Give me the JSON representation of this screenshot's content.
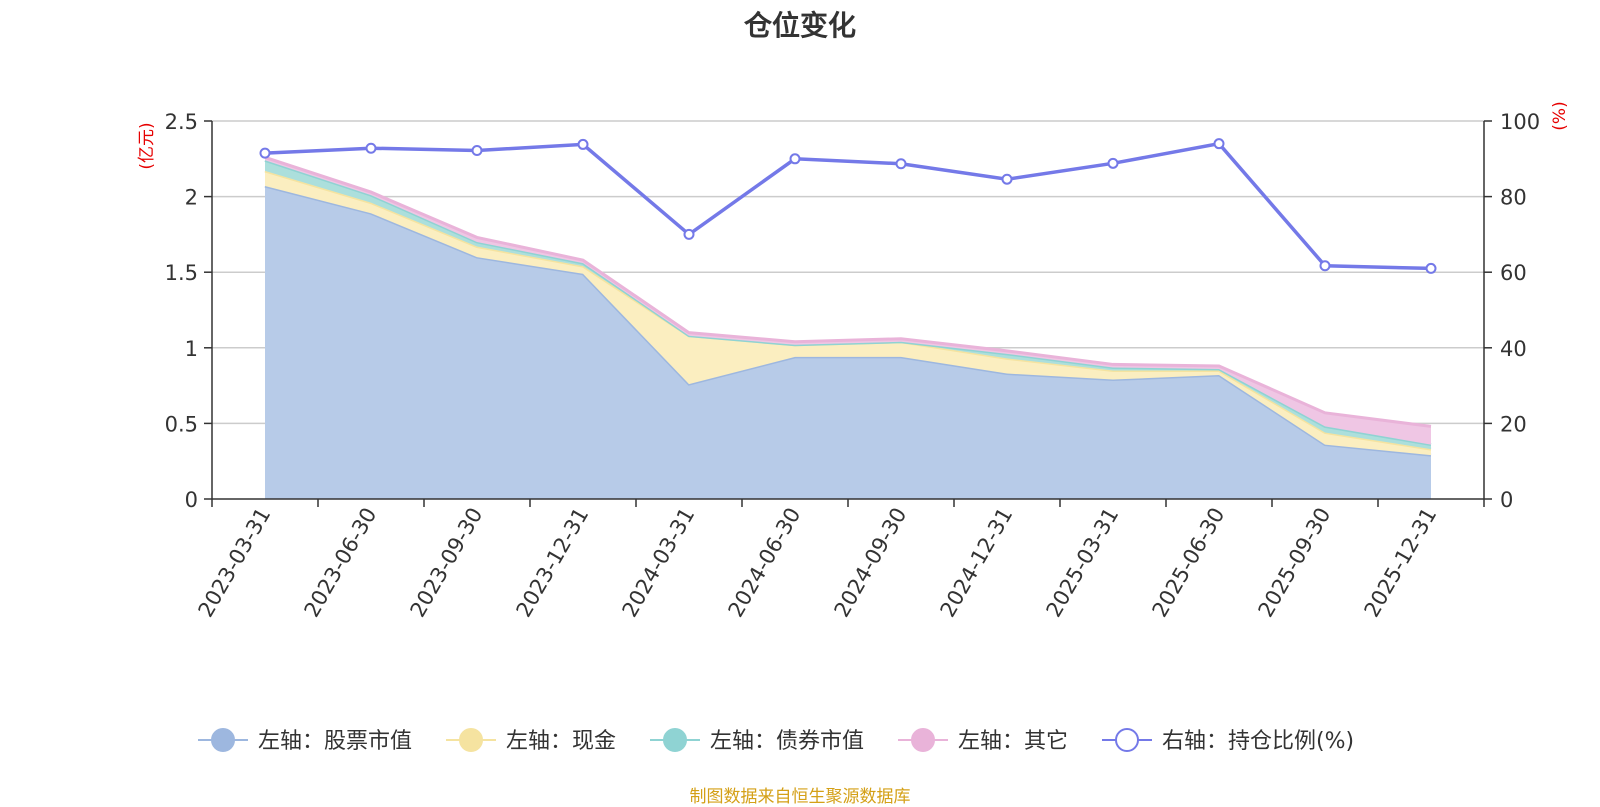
{
  "chart_data": {
    "type": "area",
    "title": "仓位变化",
    "left_axis_unit": "(亿元)",
    "right_axis_unit": "(%)",
    "x": [
      "2023-03-31",
      "2023-06-30",
      "2023-09-30",
      "2023-12-31",
      "2024-03-31",
      "2024-06-30",
      "2024-09-30",
      "2024-12-31",
      "2025-03-31",
      "2025-06-30",
      "2025-09-30",
      "2025-12-31"
    ],
    "left_ylim": [
      0,
      2.5
    ],
    "left_ticks": [
      "0",
      "0.5",
      "1",
      "1.5",
      "2",
      "2.5"
    ],
    "right_ylim": [
      0,
      100
    ],
    "right_ticks": [
      "0",
      "20",
      "40",
      "60",
      "80",
      "100"
    ],
    "stacked_series": [
      {
        "name": "左轴：股票市值",
        "axis": "left",
        "color": "#9db7df",
        "fill": "#b7cbe8",
        "values": [
          2.07,
          1.89,
          1.6,
          1.49,
          0.76,
          0.94,
          0.94,
          0.83,
          0.79,
          0.82,
          0.36,
          0.29
        ]
      },
      {
        "name": "左轴：现金",
        "axis": "left",
        "color": "#f5e3a0",
        "fill": "#fbeec0",
        "values": [
          0.1,
          0.07,
          0.07,
          0.05,
          0.32,
          0.08,
          0.1,
          0.1,
          0.06,
          0.03,
          0.08,
          0.04
        ]
      },
      {
        "name": "左轴：债券市值",
        "axis": "left",
        "color": "#8fd3d3",
        "fill": "#acdfdc",
        "values": [
          0.07,
          0.05,
          0.03,
          0.02,
          0.0,
          0.0,
          0.0,
          0.03,
          0.02,
          0.01,
          0.04,
          0.03
        ]
      },
      {
        "name": "左轴：其它",
        "axis": "left",
        "color": "#e9b3d9",
        "fill": "#efc6e4",
        "values": [
          0.02,
          0.02,
          0.03,
          0.02,
          0.02,
          0.02,
          0.02,
          0.02,
          0.02,
          0.02,
          0.09,
          0.12
        ]
      }
    ],
    "line_series": {
      "name": "右轴：持仓比例(%)",
      "axis": "right",
      "color": "#7479e8",
      "values": [
        91.5,
        92.8,
        92.2,
        93.8,
        70.0,
        90.0,
        88.7,
        84.6,
        88.8,
        94.0,
        61.7,
        61.0
      ]
    },
    "legend_position": "bottom",
    "grid": true
  },
  "footer": "制图数据来自恒生聚源数据库"
}
